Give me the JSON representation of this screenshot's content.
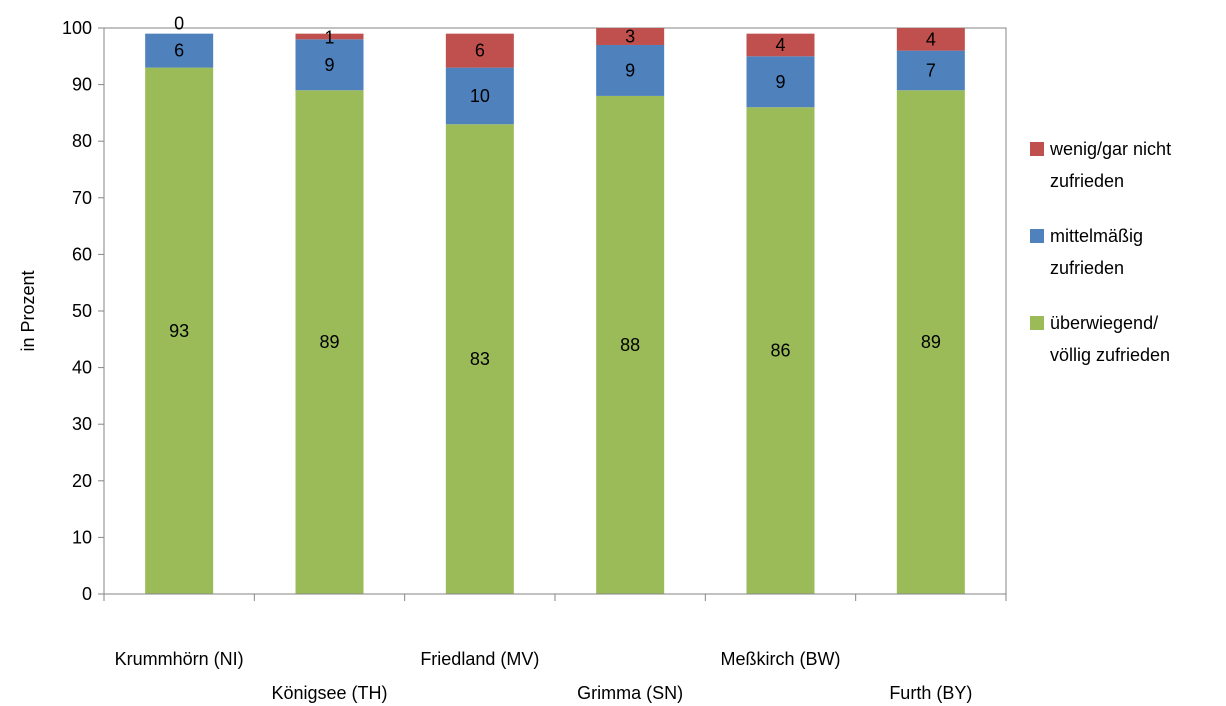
{
  "chart_data": {
    "type": "bar",
    "stacked": true,
    "categories": [
      "Krummhörn (NI)",
      "Königsee (TH)",
      "Friedland (MV)",
      "Grimma (SN)",
      "Meßkirch (BW)",
      "Furth (BY)"
    ],
    "series": [
      {
        "name": "überwiegend/ völlig zufrieden",
        "legend_lines": [
          "überwiegend/",
          "völlig zufrieden"
        ],
        "color": "#9BBB59",
        "values": [
          93,
          89,
          83,
          88,
          86,
          89
        ]
      },
      {
        "name": "mittelmäßig zufrieden",
        "legend_lines": [
          "mittelmäßig",
          "zufrieden"
        ],
        "color": "#4F81BD",
        "values": [
          6,
          9,
          10,
          9,
          9,
          7
        ]
      },
      {
        "name": "wenig/gar nicht zufrieden",
        "legend_lines": [
          "wenig/gar nicht",
          "zufrieden"
        ],
        "color": "#C0504D",
        "values": [
          0,
          1,
          6,
          3,
          4,
          4
        ]
      }
    ],
    "ylabel": "in Prozent",
    "xlabel": "",
    "title": "",
    "ylim": [
      0,
      100
    ],
    "yticks": [
      0,
      10,
      20,
      30,
      40,
      50,
      60,
      70,
      80,
      90,
      100
    ],
    "grid": false,
    "legend_position": "right"
  }
}
